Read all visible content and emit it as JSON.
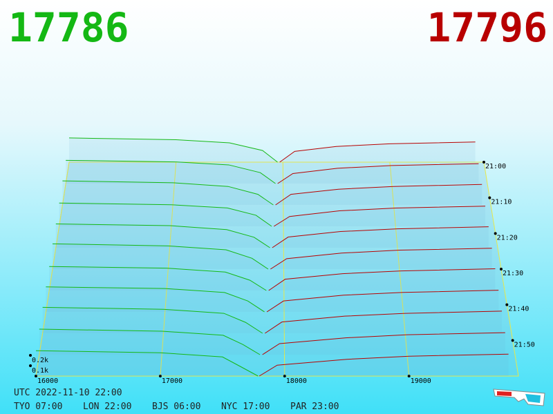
{
  "chart_data": {
    "type": "depth3d",
    "bid": 17786,
    "ask": 17796,
    "bid_color": "#14b814",
    "ask_color": "#b80000",
    "xlim": [
      16000,
      19880
    ],
    "xticks": [
      16000,
      17000,
      18000,
      19000
    ],
    "tlim": [
      0,
      60
    ],
    "tticks": [
      {
        "value": 0,
        "label": "21:00"
      },
      {
        "value": 10,
        "label": "21:10"
      },
      {
        "value": 20,
        "label": "21:20"
      },
      {
        "value": 30,
        "label": "21:30"
      },
      {
        "value": 40,
        "label": "21:40"
      },
      {
        "value": 50,
        "label": "21:50"
      }
    ],
    "zticks": [
      {
        "value": 100,
        "label": "0.1k"
      },
      {
        "value": 200,
        "label": "0.2k"
      }
    ],
    "snapshots": [
      {
        "minute": 0,
        "bid_prices": [
          16000,
          17000,
          17500,
          17810,
          17950
        ],
        "bid_depth": [
          270,
          250,
          215,
          130,
          0
        ],
        "ask_prices": [
          17970,
          18110,
          18500,
          19000,
          19800
        ],
        "ask_depth": [
          0,
          120,
          175,
          205,
          225
        ]
      },
      {
        "minute": 6,
        "bid_prices": [
          16000,
          17000,
          17500,
          17790,
          17930
        ],
        "bid_depth": [
          255,
          238,
          205,
          120,
          0
        ],
        "ask_prices": [
          17950,
          18090,
          18500,
          19000,
          19800
        ],
        "ask_depth": [
          0,
          110,
          168,
          198,
          218
        ]
      },
      {
        "minute": 12,
        "bid_prices": [
          16000,
          17000,
          17500,
          17770,
          17910
        ],
        "bid_depth": [
          260,
          240,
          200,
          115,
          0
        ],
        "ask_prices": [
          17930,
          18070,
          18500,
          19000,
          19800
        ],
        "ask_depth": [
          0,
          115,
          170,
          200,
          222
        ]
      },
      {
        "minute": 18,
        "bid_prices": [
          16000,
          17000,
          17500,
          17755,
          17895
        ],
        "bid_depth": [
          248,
          230,
          196,
          118,
          0
        ],
        "ask_prices": [
          17915,
          18055,
          18500,
          19000,
          19800
        ],
        "ask_depth": [
          0,
          105,
          165,
          195,
          215
        ]
      },
      {
        "minute": 24,
        "bid_prices": [
          16000,
          17000,
          17500,
          17740,
          17880
        ],
        "bid_depth": [
          250,
          232,
          190,
          110,
          0
        ],
        "ask_prices": [
          17900,
          18040,
          18500,
          19000,
          19800
        ],
        "ask_depth": [
          0,
          112,
          170,
          198,
          220
        ]
      },
      {
        "minute": 30,
        "bid_prices": [
          16000,
          17000,
          17500,
          17725,
          17865
        ],
        "bid_depth": [
          262,
          240,
          200,
          112,
          0
        ],
        "ask_prices": [
          17885,
          18025,
          18500,
          19000,
          19800
        ],
        "ask_depth": [
          0,
          108,
          166,
          196,
          216
        ]
      },
      {
        "minute": 36,
        "bid_prices": [
          16000,
          17000,
          17500,
          17710,
          17850
        ],
        "bid_depth": [
          245,
          228,
          188,
          105,
          0
        ],
        "ask_prices": [
          17870,
          18010,
          18500,
          19000,
          19800
        ],
        "ask_depth": [
          0,
          115,
          172,
          200,
          222
        ]
      },
      {
        "minute": 42,
        "bid_prices": [
          16000,
          17000,
          17500,
          17695,
          17835
        ],
        "bid_depth": [
          252,
          235,
          195,
          110,
          0
        ],
        "ask_prices": [
          17855,
          17995,
          18500,
          19000,
          19800
        ],
        "ask_depth": [
          0,
          110,
          168,
          196,
          218
        ]
      },
      {
        "minute": 48,
        "bid_prices": [
          16000,
          17000,
          17500,
          17680,
          17820
        ],
        "bid_depth": [
          258,
          238,
          198,
          108,
          0
        ],
        "ask_prices": [
          17840,
          17980,
          18500,
          19000,
          19800
        ],
        "ask_depth": [
          0,
          112,
          170,
          198,
          220
        ]
      },
      {
        "minute": 54,
        "bid_prices": [
          16000,
          17000,
          17500,
          17660,
          17800
        ],
        "bid_depth": [
          250,
          230,
          190,
          100,
          0
        ],
        "ask_prices": [
          17820,
          17960,
          18500,
          19000,
          19800
        ],
        "ask_depth": [
          0,
          108,
          165,
          195,
          215
        ]
      },
      {
        "minute": 60,
        "bid_prices": [
          16000,
          17000,
          17500,
          17640,
          17786
        ],
        "bid_depth": [
          245,
          225,
          185,
          95,
          0
        ],
        "ask_prices": [
          17796,
          17940,
          18500,
          19000,
          19800
        ],
        "ask_depth": [
          0,
          105,
          162,
          192,
          212
        ]
      }
    ]
  },
  "footer": {
    "utc": "UTC 2022-11-10 22:00",
    "clocks": [
      "TYO 07:00",
      "LON 22:00",
      "BJS 06:00",
      "NYC 17:00",
      "PAR 23:00"
    ]
  }
}
